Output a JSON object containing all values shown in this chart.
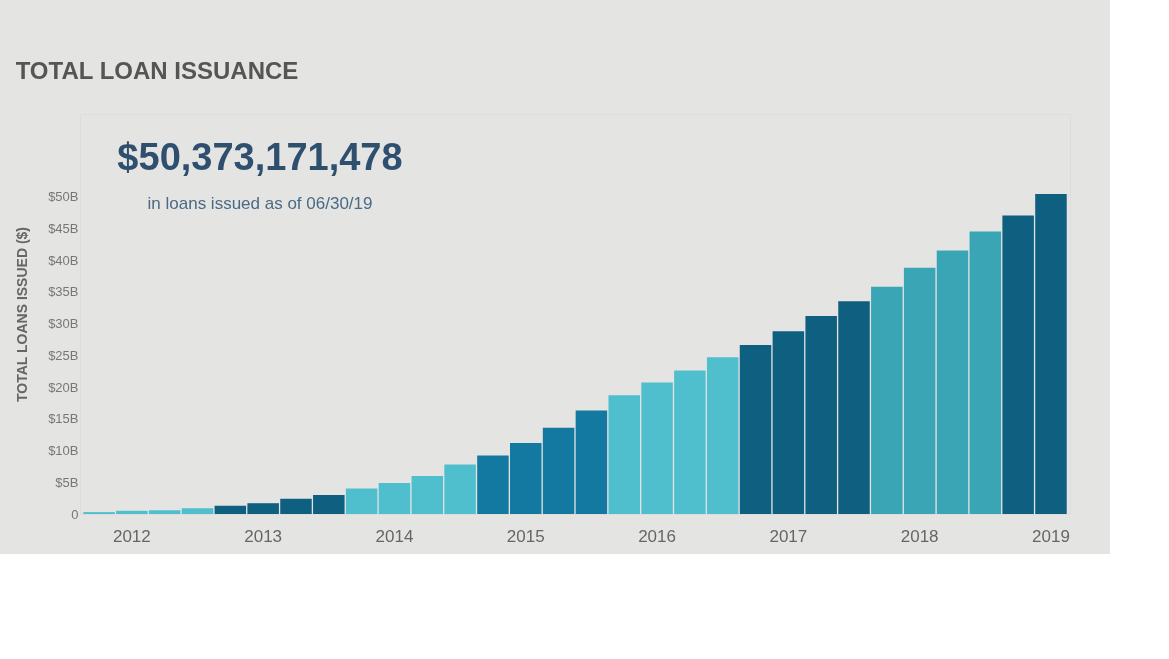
{
  "chart_data": {
    "type": "bar",
    "title": "TOTAL LOAN ISSUANCE",
    "ylabel": "TOTAL LOANS ISSUED ($)",
    "annotations": [
      "$50,373,171,478",
      "in loans issued as of 06/30/19"
    ],
    "categories": [
      null,
      "2012",
      null,
      null,
      null,
      "2013",
      null,
      null,
      null,
      "2014",
      null,
      null,
      null,
      "2015",
      null,
      null,
      null,
      "2016",
      null,
      null,
      null,
      "2017",
      null,
      null,
      null,
      "2018",
      null,
      null,
      null,
      "2019"
    ],
    "values": [
      0.3,
      0.5,
      0.6,
      0.9,
      1.3,
      1.7,
      2.4,
      3.0,
      4.0,
      4.9,
      6.0,
      7.8,
      9.2,
      11.2,
      13.6,
      16.3,
      18.7,
      20.7,
      22.6,
      24.7,
      26.6,
      28.8,
      31.2,
      33.5,
      35.8,
      38.8,
      41.5,
      44.5,
      47.0,
      50.4
    ],
    "colors": [
      "#4fbfcd",
      "#4fbfcd",
      "#4fbfcd",
      "#4fbfcd",
      "#0f5f80",
      "#0f5f80",
      "#0f5f80",
      "#0f5f80",
      "#4fbfcd",
      "#4fbfcd",
      "#4fbfcd",
      "#4fbfcd",
      "#1479a0",
      "#1479a0",
      "#1479a0",
      "#1479a0",
      "#4fbfcd",
      "#4fbfcd",
      "#4fbfcd",
      "#4fbfcd",
      "#0f5f80",
      "#0f5f80",
      "#0f5f80",
      "#0f5f80",
      "#3aa5b5",
      "#3aa5b5",
      "#3aa5b5",
      "#3aa5b5",
      "#0f5f80",
      "#0f5f80"
    ],
    "ylim": [
      0,
      63
    ],
    "yticks": [
      {
        "value": 0,
        "label": "0"
      },
      {
        "value": 5,
        "label": "$5B"
      },
      {
        "value": 10,
        "label": "$10B"
      },
      {
        "value": 15,
        "label": "$15B"
      },
      {
        "value": 20,
        "label": "$20B"
      },
      {
        "value": 25,
        "label": "$25B"
      },
      {
        "value": 30,
        "label": "$30B"
      },
      {
        "value": 35,
        "label": "$35B"
      },
      {
        "value": 40,
        "label": "$40B"
      },
      {
        "value": 45,
        "label": "$45B"
      },
      {
        "value": 50,
        "label": "$50B"
      }
    ],
    "grid": false,
    "legend": false
  }
}
